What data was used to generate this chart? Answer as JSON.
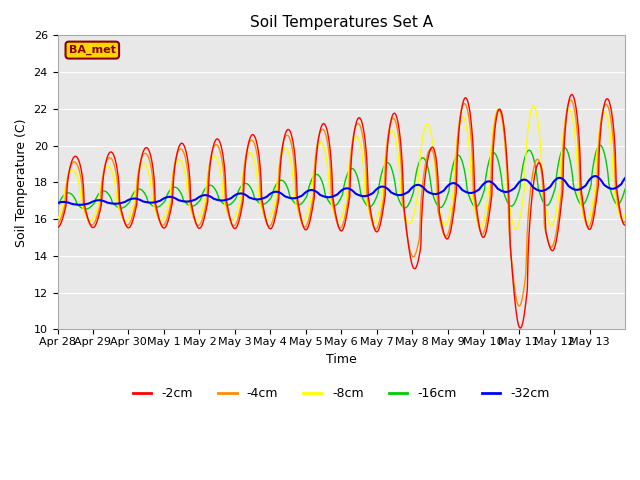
{
  "title": "Soil Temperatures Set A",
  "xlabel": "Time",
  "ylabel": "Soil Temperature (C)",
  "ylim": [
    10,
    26
  ],
  "yticks": [
    10,
    12,
    14,
    16,
    18,
    20,
    22,
    24,
    26
  ],
  "plot_bg_color": "#e8e8e8",
  "fig_bg_color": "#ffffff",
  "annotation_text": "BA_met",
  "annotation_color": "#8B0000",
  "annotation_bg": "#FFD700",
  "line_colors": {
    "-2cm": "#FF0000",
    "-4cm": "#FF8C00",
    "-8cm": "#FFFF00",
    "-16cm": "#00CC00",
    "-32cm": "#0000FF"
  },
  "legend_labels": [
    "-2cm",
    "-4cm",
    "-8cm",
    "-16cm",
    "-32cm"
  ],
  "xtick_labels": [
    "Apr 28",
    "Apr 29",
    "Apr 30",
    "May 1",
    "May 2",
    "May 3",
    "May 4",
    "May 5",
    "May 6",
    "May 7",
    "May 8",
    "May 9",
    "May 10",
    "May 11",
    "May 12",
    "May 13"
  ],
  "n_days": 16,
  "points_per_day": 48
}
